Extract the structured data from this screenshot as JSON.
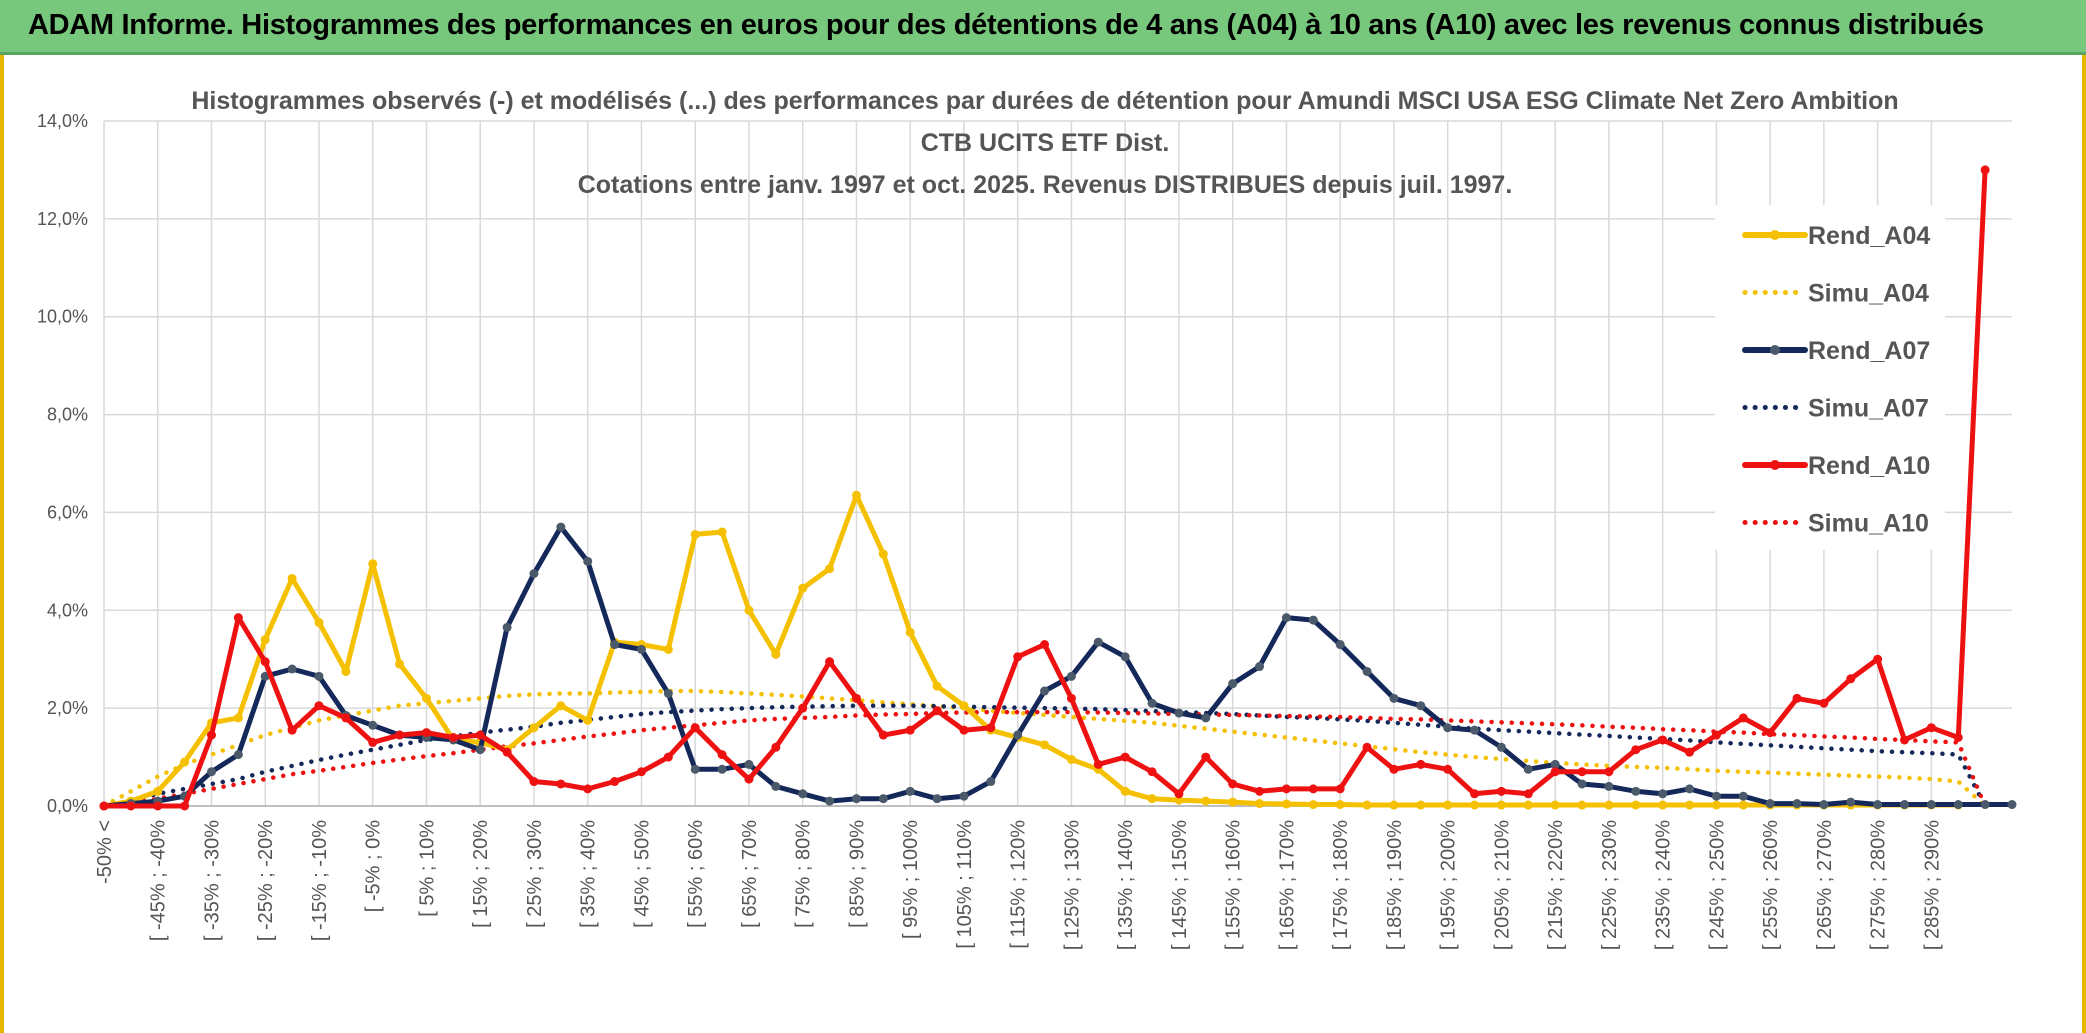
{
  "banner": {
    "title": "ADAM Informe. Histogrammes des performances en euros pour des détentions de 4 ans (A04) à 10 ans (A10) avec les revenus connus distribués"
  },
  "chart_data": {
    "type": "line",
    "title": [
      "Histogrammes observés (-) et modélisés (...) des performances par durées de détention pour Amundi MSCI USA ESG Climate Net Zero Ambition",
      "CTB UCITS ETF Dist.",
      "Cotations entre janv. 1997 et oct. 2025. Revenus DISTRIBUES depuis juil. 1997."
    ],
    "xlabel": "",
    "ylabel": "",
    "ylim": [
      0,
      14
    ],
    "yticks": [
      "0,0%",
      "2,0%",
      "4,0%",
      "6,0%",
      "8,0%",
      "10,0%",
      "12,0%",
      "14,0%"
    ],
    "grid": true,
    "legend_position": "right",
    "xticks": [
      "-50% <",
      "[ -45% ; -40%",
      "[ -35% ; -30%",
      "[ -25% ; -20%",
      "[ -15% ; -10%",
      "[ -5% ; 0%",
      "[ 5% ; 10%",
      "[ 15% ; 20%",
      "[ 25% ; 30%",
      "[ 35% ; 40%",
      "[ 45% ; 50%",
      "[ 55% ; 60%",
      "[ 65% ; 70%",
      "[ 75% ; 80%",
      "[ 85% ; 90%",
      "[ 95% ; 100%",
      "[ 105% ; 110%",
      "[ 115% ; 120%",
      "[ 125% ; 130%",
      "[ 135% ; 140%",
      "[ 145% ; 150%",
      "[ 155% ; 160%",
      "[ 165% ; 170%",
      "[ 175% ; 180%",
      "[ 185% ; 190%",
      "[ 195% ; 200%",
      "[ 205% ; 210%",
      "[ 215% ; 220%",
      "[ 225% ; 230%",
      "[ 235% ; 240%",
      "[ 245% ; 250%",
      "[ 255% ; 260%",
      "[ 265% ; 270%",
      "[ 275% ; 280%",
      "[ 285% ; 290%"
    ],
    "series": [
      {
        "name": "Rend_A04",
        "color": "#f5c000",
        "style": "solid",
        "values": [
          0,
          0.1,
          0.3,
          0.9,
          1.7,
          1.8,
          3.4,
          4.65,
          3.75,
          2.75,
          4.95,
          2.9,
          2.2,
          1.35,
          1.3,
          1.15,
          1.6,
          2.05,
          1.75,
          3.35,
          3.3,
          3.2,
          5.55,
          5.6,
          4.0,
          3.1,
          4.45,
          4.85,
          6.35,
          5.15,
          3.55,
          2.45,
          2.05,
          1.55,
          1.4,
          1.25,
          0.95,
          0.75,
          0.3,
          0.15,
          0.12,
          0.1,
          0.08,
          0.05,
          0.04,
          0.03,
          0.03,
          0.02,
          0.02,
          0.02,
          0.02,
          0.02,
          0.02,
          0.02,
          0.02,
          0.02,
          0.02,
          0.02,
          0.02,
          0.02,
          0.02,
          0.02,
          0.02,
          0.02,
          0.02,
          0.02,
          0.02,
          0.02,
          0.02,
          0.02
        ]
      },
      {
        "name": "Simu_A04",
        "color": "#f5c000",
        "style": "dotted",
        "values": [
          0,
          0.3,
          0.6,
          0.85,
          1.05,
          1.25,
          1.45,
          1.6,
          1.75,
          1.85,
          1.95,
          2.05,
          2.1,
          2.15,
          2.2,
          2.25,
          2.28,
          2.3,
          2.3,
          2.32,
          2.33,
          2.35,
          2.35,
          2.33,
          2.3,
          2.27,
          2.24,
          2.2,
          2.16,
          2.12,
          2.08,
          2.04,
          2.0,
          1.95,
          1.9,
          1.86,
          1.82,
          1.78,
          1.74,
          1.7,
          1.64,
          1.58,
          1.52,
          1.46,
          1.4,
          1.34,
          1.28,
          1.22,
          1.16,
          1.1,
          1.05,
          1.0,
          0.96,
          0.92,
          0.88,
          0.85,
          0.82,
          0.8,
          0.78,
          0.75,
          0.72,
          0.7,
          0.68,
          0.66,
          0.64,
          0.62,
          0.6,
          0.58,
          0.55,
          0.5,
          0.0
        ]
      },
      {
        "name": "Rend_A07",
        "color": "#14285a",
        "style": "solid",
        "values": [
          0,
          0.05,
          0.1,
          0.2,
          0.7,
          1.05,
          2.65,
          2.8,
          2.65,
          1.85,
          1.65,
          1.45,
          1.4,
          1.35,
          1.15,
          3.65,
          4.75,
          5.7,
          5.0,
          3.3,
          3.2,
          2.3,
          0.75,
          0.75,
          0.85,
          0.4,
          0.25,
          0.1,
          0.15,
          0.15,
          0.3,
          0.15,
          0.2,
          0.5,
          1.45,
          2.35,
          2.65,
          3.35,
          3.05,
          2.1,
          1.9,
          1.8,
          2.5,
          2.85,
          3.85,
          3.8,
          3.3,
          2.75,
          2.2,
          2.05,
          1.6,
          1.55,
          1.2,
          0.75,
          0.85,
          0.45,
          0.4,
          0.3,
          0.25,
          0.35,
          0.2,
          0.2,
          0.05,
          0.05,
          0.03,
          0.08,
          0.03,
          0.03,
          0.03,
          0.03,
          0.03,
          0.03
        ]
      },
      {
        "name": "Simu_A07",
        "color": "#14285a",
        "style": "dotted",
        "values": [
          0,
          0.1,
          0.25,
          0.35,
          0.45,
          0.55,
          0.7,
          0.82,
          0.94,
          1.05,
          1.15,
          1.25,
          1.35,
          1.42,
          1.5,
          1.56,
          1.62,
          1.7,
          1.76,
          1.82,
          1.88,
          1.92,
          1.95,
          1.98,
          2.0,
          2.02,
          2.03,
          2.04,
          2.05,
          2.05,
          2.05,
          2.04,
          2.03,
          2.02,
          2.01,
          2.0,
          1.99,
          1.98,
          1.96,
          1.94,
          1.92,
          1.9,
          1.88,
          1.85,
          1.82,
          1.8,
          1.77,
          1.74,
          1.7,
          1.66,
          1.62,
          1.58,
          1.55,
          1.52,
          1.49,
          1.46,
          1.43,
          1.4,
          1.37,
          1.34,
          1.3,
          1.27,
          1.24,
          1.21,
          1.18,
          1.15,
          1.12,
          1.1,
          1.08,
          1.05,
          0.0
        ]
      },
      {
        "name": "Rend_A10",
        "color": "#ee1111",
        "style": "solid",
        "values": [
          0,
          0,
          0,
          0,
          1.45,
          3.85,
          2.95,
          1.55,
          2.05,
          1.8,
          1.3,
          1.45,
          1.5,
          1.4,
          1.45,
          1.1,
          0.5,
          0.45,
          0.35,
          0.5,
          0.7,
          1.0,
          1.6,
          1.05,
          0.55,
          1.2,
          2.0,
          2.95,
          2.2,
          1.45,
          1.55,
          1.95,
          1.55,
          1.6,
          3.05,
          3.3,
          2.2,
          0.85,
          1.0,
          0.7,
          0.25,
          1.0,
          0.45,
          0.3,
          0.35,
          0.35,
          0.35,
          1.2,
          0.75,
          0.85,
          0.75,
          0.25,
          0.3,
          0.25,
          0.7,
          0.7,
          0.7,
          1.15,
          1.35,
          1.1,
          1.45,
          1.8,
          1.5,
          2.2,
          2.1,
          2.6,
          3.0,
          1.35,
          1.6,
          1.4,
          13.0
        ]
      },
      {
        "name": "Simu_A10",
        "color": "#ee1111",
        "style": "dotted",
        "values": [
          0,
          0.05,
          0.15,
          0.25,
          0.35,
          0.45,
          0.55,
          0.65,
          0.72,
          0.8,
          0.88,
          0.95,
          1.02,
          1.08,
          1.15,
          1.22,
          1.28,
          1.35,
          1.42,
          1.48,
          1.55,
          1.6,
          1.65,
          1.7,
          1.75,
          1.78,
          1.8,
          1.82,
          1.85,
          1.87,
          1.88,
          1.9,
          1.91,
          1.92,
          1.92,
          1.92,
          1.92,
          1.91,
          1.9,
          1.89,
          1.88,
          1.87,
          1.86,
          1.85,
          1.84,
          1.83,
          1.82,
          1.8,
          1.78,
          1.77,
          1.75,
          1.73,
          1.71,
          1.69,
          1.67,
          1.65,
          1.62,
          1.6,
          1.57,
          1.55,
          1.52,
          1.5,
          1.47,
          1.45,
          1.42,
          1.4,
          1.37,
          1.35,
          1.32,
          1.3,
          0.0
        ]
      }
    ]
  }
}
